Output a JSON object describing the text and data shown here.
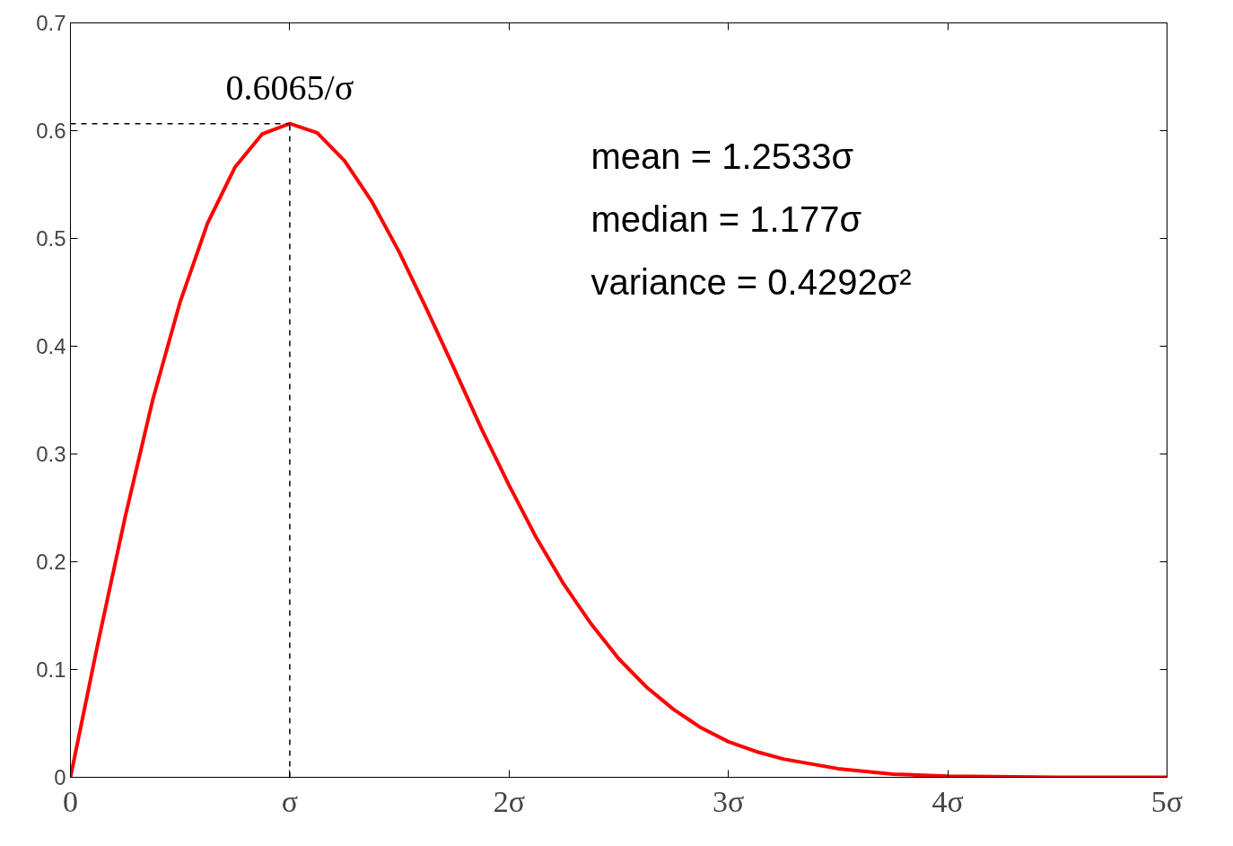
{
  "chart_data": {
    "type": "line",
    "x": [
      0,
      0.125,
      0.25,
      0.375,
      0.5,
      0.625,
      0.75,
      0.875,
      1,
      1.125,
      1.25,
      1.375,
      1.5,
      1.625,
      1.75,
      1.875,
      2,
      2.125,
      2.25,
      2.375,
      2.5,
      2.625,
      2.75,
      2.875,
      3,
      3.125,
      3.25,
      3.5,
      3.75,
      4,
      4.5,
      5
    ],
    "series": [
      {
        "color": "#ff0000",
        "values": [
          0,
          0.124,
          0.242,
          0.35,
          0.441,
          0.514,
          0.566,
          0.597,
          0.6065,
          0.598,
          0.572,
          0.534,
          0.487,
          0.434,
          0.379,
          0.323,
          0.271,
          0.222,
          0.179,
          0.142,
          0.11,
          0.084,
          0.063,
          0.046,
          0.033,
          0.024,
          0.017,
          0.008,
          0.003,
          0.001,
          0.0,
          0
        ]
      }
    ],
    "xlim": [
      0,
      5
    ],
    "ylim": [
      0,
      0.7
    ],
    "xticks": [
      0,
      {
        "value": 1,
        "label": "σ"
      },
      {
        "value": 2,
        "label": "2σ"
      },
      {
        "value": 3,
        "label": "3σ"
      },
      {
        "value": 4,
        "label": "4σ"
      },
      {
        "value": 5,
        "label": "5σ"
      }
    ],
    "yticks": [
      0,
      0.1,
      0.2,
      0.3,
      0.4,
      0.5,
      0.6,
      0.7
    ],
    "ref_lines": [
      {
        "axis": "x",
        "value": 1,
        "line_style": "dashed",
        "color": "#000000"
      },
      {
        "axis": "y",
        "value": 0.6065,
        "line_style": "dashed",
        "color": "#000000"
      }
    ],
    "annotations": [
      {
        "text": "0.6065/σ",
        "x": 1,
        "y": 0.6065
      },
      "mean = 1.2533σ",
      "median = 1.177σ",
      "variance = 0.4292σ²"
    ],
    "grid": false,
    "marker": "none",
    "line_style": "solid"
  }
}
